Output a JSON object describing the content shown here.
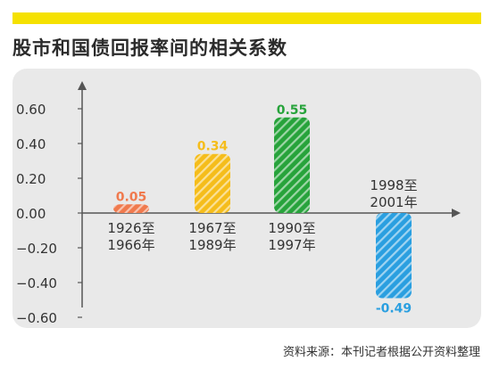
{
  "header": {
    "title": "股市和国债回报率间的相关系数"
  },
  "colors": {
    "accent_bar": "#f5e100",
    "panel": "#e9e9e9",
    "axis": "#555555",
    "series": [
      "#f07a4e",
      "#f5bd1b",
      "#27a33b",
      "#2a9fe0"
    ]
  },
  "chart_data": {
    "type": "bar",
    "categories": [
      "1926至\n1966年",
      "1967至\n1989年",
      "1990至\n1997年",
      "1998至\n2001年"
    ],
    "values": [
      0.05,
      0.34,
      0.55,
      -0.49
    ],
    "value_labels": [
      "0.05",
      "0.34",
      "0.55",
      "-0.49"
    ],
    "ylim": [
      -0.6,
      0.6
    ],
    "yticks": [
      "0.60",
      "0.40",
      "0.20",
      "0.00",
      "−0.20",
      "−0.40",
      "−0.60"
    ],
    "title": "",
    "xlabel": "",
    "ylabel": "",
    "grid": false,
    "bar_fill": "hatched"
  },
  "footer": {
    "source": "资料来源：本刊记者根据公开资料整理"
  }
}
